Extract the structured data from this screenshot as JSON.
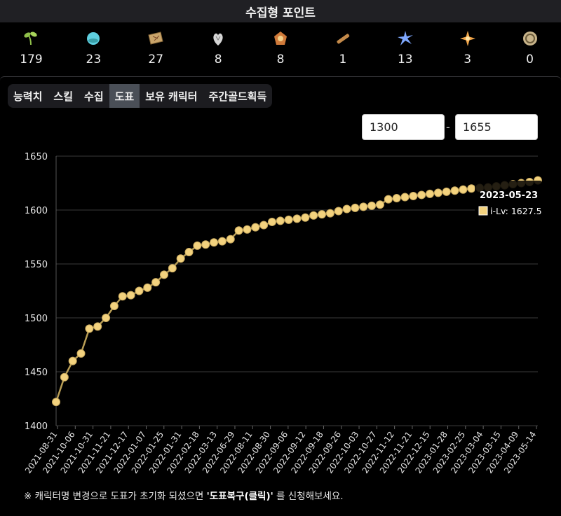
{
  "header": {
    "title": "수집형 포인트"
  },
  "collectibles": [
    {
      "icon": "mokoko-seed-icon",
      "count": "179",
      "color": "#8fbf4a"
    },
    {
      "icon": "island-heart-icon",
      "count": "23",
      "color": "#5fd0e0"
    },
    {
      "icon": "treasure-map-icon",
      "count": "27",
      "color": "#c9a46a"
    },
    {
      "icon": "giant-heart-icon",
      "count": "8",
      "color": "#d6d6d6"
    },
    {
      "icon": "ignea-token-icon",
      "count": "8",
      "color": "#d07a3a"
    },
    {
      "icon": "art-scroll-icon",
      "count": "1",
      "color": "#c48a4a"
    },
    {
      "icon": "world-tree-leaf-icon",
      "count": "13",
      "color": "#7fa8ff"
    },
    {
      "icon": "orpheus-star-icon",
      "count": "3",
      "color": "#f2a64a"
    },
    {
      "icon": "sea-bounty-icon",
      "count": "0",
      "color": "#c8b48a"
    }
  ],
  "tabs": [
    {
      "label": "능력치",
      "active": false
    },
    {
      "label": "스킬",
      "active": false
    },
    {
      "label": "수집",
      "active": false
    },
    {
      "label": "도표",
      "active": true
    },
    {
      "label": "보유 캐릭터",
      "active": false
    },
    {
      "label": "주간골드획득",
      "active": false
    }
  ],
  "range": {
    "min": "1300",
    "separator": "-",
    "max": "1655"
  },
  "chart_data": {
    "type": "line",
    "ylim": [
      1400,
      1650
    ],
    "yticks": [
      1400,
      1450,
      1500,
      1550,
      1600,
      1650
    ],
    "grid": true,
    "line_color": "#b89d55",
    "marker_color": "#f3d27e",
    "x_labels": [
      "2021-08-31",
      "2021-10-06",
      "2021-10-31",
      "2021-11-21",
      "2021-12-17",
      "2022-01-07",
      "2022-01-25",
      "2022-01-31",
      "2022-02-18",
      "2022-03-13",
      "2022-06-29",
      "2022-08-11",
      "2022-08-30",
      "2022-09-06",
      "2022-09-12",
      "2022-09-18",
      "2022-09-26",
      "2022-10-03",
      "2022-10-27",
      "2022-11-12",
      "2022-11-21",
      "2022-12-15",
      "2023-01-28",
      "2023-02-25",
      "2023-03-04",
      "2023-03-15",
      "2023-04-09",
      "2023-05-14"
    ],
    "series": [
      {
        "values": [
          1422,
          1445,
          1460,
          1467,
          1490,
          1492,
          1500,
          1511,
          1520,
          1521,
          1525,
          1528,
          1533,
          1540,
          1546,
          1555,
          1561,
          1567,
          1568,
          1570,
          1571,
          1573,
          1581,
          1582,
          1584,
          1586,
          1589,
          1590,
          1591,
          1592,
          1593,
          1595,
          1596,
          1597,
          1599,
          1601,
          1602,
          1603,
          1604,
          1605,
          1610,
          1611,
          1612,
          1613,
          1614,
          1615,
          1616,
          1617,
          1618,
          1619,
          1620,
          1620.5,
          1621,
          1622,
          1623,
          1624,
          1625,
          1626,
          1627.5
        ]
      }
    ],
    "tooltip": {
      "date": "2023-05-23",
      "label": "i-Lv: 1627.5"
    }
  },
  "footer": {
    "note_prefix": "※ 캐릭터명 변경으로 도표가 초기화 되셨으면 ",
    "note_link": "'도표복구(클릭)'",
    "note_suffix": " 를 신청해보세요."
  }
}
